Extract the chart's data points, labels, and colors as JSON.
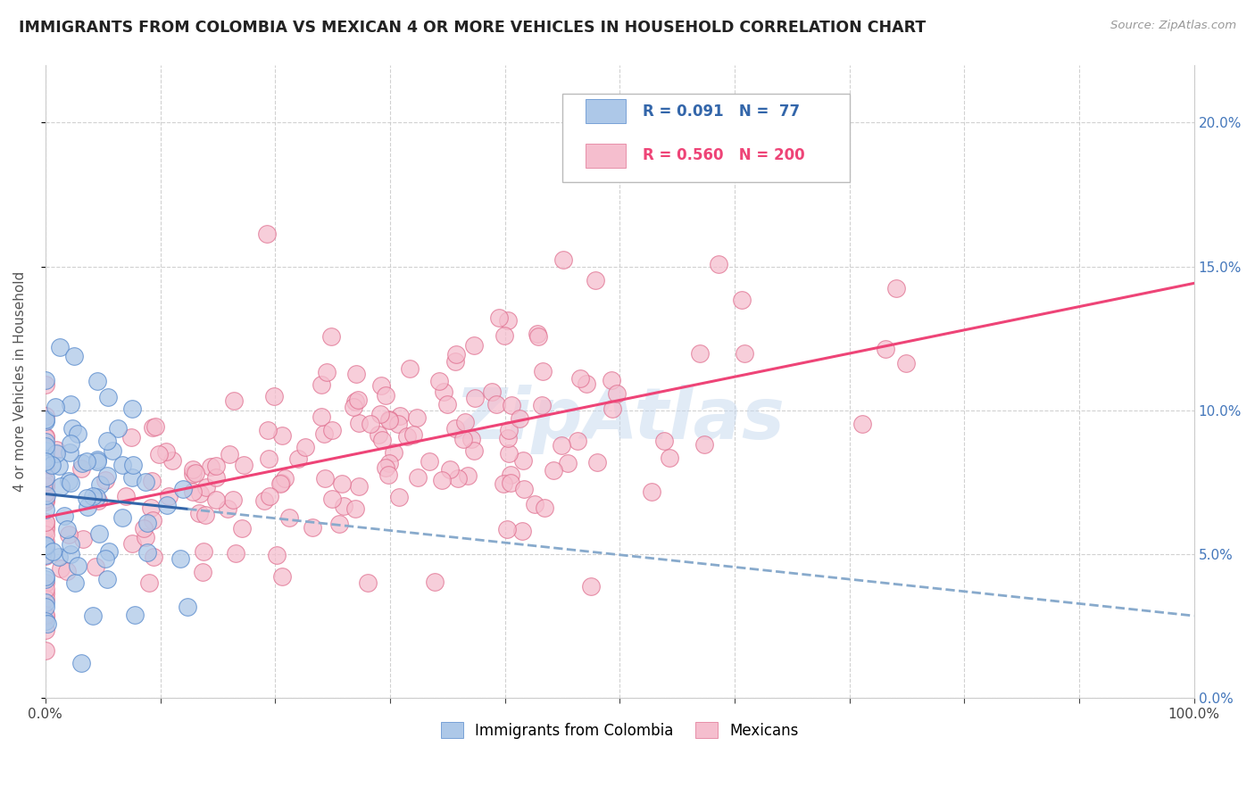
{
  "title": "IMMIGRANTS FROM COLOMBIA VS MEXICAN 4 OR MORE VEHICLES IN HOUSEHOLD CORRELATION CHART",
  "source": "Source: ZipAtlas.com",
  "xlabel": "",
  "ylabel": "4 or more Vehicles in Household",
  "xlim": [
    0.0,
    1.0
  ],
  "ylim": [
    0.0,
    0.22
  ],
  "xticks": [
    0.0,
    0.1,
    0.2,
    0.3,
    0.4,
    0.5,
    0.6,
    0.7,
    0.8,
    0.9,
    1.0
  ],
  "xtick_labels": [
    "0.0%",
    "",
    "",
    "",
    "",
    "",
    "",
    "",
    "",
    "",
    "100.0%"
  ],
  "yticks": [
    0.0,
    0.05,
    0.1,
    0.15,
    0.2
  ],
  "ytick_labels_right": [
    "0.0%",
    "5.0%",
    "10.0%",
    "15.0%",
    "20.0%"
  ],
  "colombia_color": "#adc8e8",
  "colombia_edge": "#5588cc",
  "mexico_color": "#f5bece",
  "mexico_edge": "#e07090",
  "colombia_line_color": "#3366aa",
  "colombia_line_color2": "#88aacc",
  "mexico_line_color": "#ee4477",
  "colombia_R": 0.091,
  "colombia_N": 77,
  "mexico_R": 0.56,
  "mexico_N": 200,
  "watermark": "ZipAtlas",
  "legend_label1": "Immigrants from Colombia",
  "legend_label2": "Mexicans",
  "background_color": "#ffffff",
  "grid_color": "#cccccc",
  "title_color": "#222222",
  "axis_label_color": "#555555",
  "right_tick_color": "#4477bb",
  "seed": 12345
}
